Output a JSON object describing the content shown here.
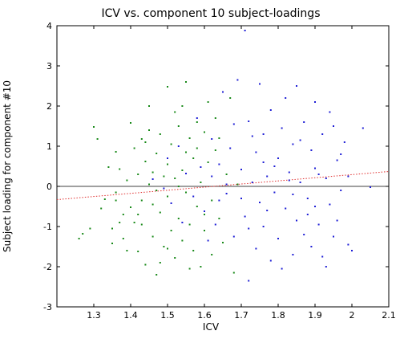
{
  "chart_data": {
    "type": "scatter",
    "title": "ICV vs. component 10 subject-loadings",
    "xlabel": "ICV",
    "ylabel": "Subject loading for component #10",
    "xlim": [
      1.2,
      2.1
    ],
    "ylim": [
      -3,
      4
    ],
    "x_ticks": [
      1.3,
      1.4,
      1.5,
      1.6,
      1.7,
      1.8,
      1.9,
      2,
      2.1
    ],
    "x_tick_labels": [
      "1.3",
      "1.4",
      "1.5",
      "1.6",
      "1.7",
      "1.8",
      "1.9",
      "2",
      "2.1"
    ],
    "y_ticks": [
      -3,
      -2,
      -1,
      0,
      1,
      2,
      3,
      4
    ],
    "y_tick_labels": [
      "-3",
      "-2",
      "-1",
      "0",
      "1",
      "2",
      "3",
      "4"
    ],
    "grid": false,
    "legend": "none",
    "series": [
      {
        "color": "#1a8a1a",
        "marker": "dot",
        "points": [
          [
            1.26,
            -1.3
          ],
          [
            1.27,
            -1.18
          ],
          [
            1.29,
            -1.05
          ],
          [
            1.3,
            1.48
          ],
          [
            1.31,
            1.18
          ],
          [
            1.32,
            -0.55
          ],
          [
            1.33,
            -0.32
          ],
          [
            1.34,
            0.48
          ],
          [
            1.35,
            -1.05
          ],
          [
            1.35,
            -1.42
          ],
          [
            1.36,
            0.86
          ],
          [
            1.36,
            -0.15
          ],
          [
            1.37,
            0.43
          ],
          [
            1.38,
            -1.3
          ],
          [
            1.38,
            -0.7
          ],
          [
            1.39,
            0.15
          ],
          [
            1.4,
            1.58
          ],
          [
            1.4,
            -0.52
          ],
          [
            1.41,
            0.95
          ],
          [
            1.41,
            -0.9
          ],
          [
            1.42,
            0.3
          ],
          [
            1.42,
            -1.62
          ],
          [
            1.43,
            1.18
          ],
          [
            1.43,
            -0.35
          ],
          [
            1.43,
            -0.95
          ],
          [
            1.44,
            0.62
          ],
          [
            1.44,
            -1.95
          ],
          [
            1.45,
            1.4
          ],
          [
            1.45,
            0.05
          ],
          [
            1.46,
            -0.45
          ],
          [
            1.46,
            -1.25
          ],
          [
            1.47,
            0.82
          ],
          [
            1.47,
            -2.2
          ],
          [
            1.48,
            1.3
          ],
          [
            1.48,
            -0.65
          ],
          [
            1.49,
            0.25
          ],
          [
            1.49,
            -1.5
          ],
          [
            1.5,
            2.48
          ],
          [
            1.5,
            0.55
          ],
          [
            1.5,
            -0.25
          ],
          [
            1.51,
            1.05
          ],
          [
            1.51,
            -1.1
          ],
          [
            1.52,
            -1.78
          ],
          [
            1.52,
            0.2
          ],
          [
            1.53,
            1.5
          ],
          [
            1.53,
            -0.8
          ],
          [
            1.54,
            2.0
          ],
          [
            1.54,
            0.4
          ],
          [
            1.54,
            -1.35
          ],
          [
            1.55,
            2.6
          ],
          [
            1.55,
            -0.15
          ],
          [
            1.56,
            1.2
          ],
          [
            1.56,
            -0.95
          ],
          [
            1.57,
            0.7
          ],
          [
            1.57,
            -1.6
          ],
          [
            1.58,
            1.6
          ],
          [
            1.58,
            -0.5
          ],
          [
            1.59,
            -2.0
          ],
          [
            1.59,
            0.1
          ],
          [
            1.6,
            1.35
          ],
          [
            1.6,
            -1.1
          ],
          [
            1.61,
            2.1
          ],
          [
            1.61,
            0.6
          ],
          [
            1.62,
            -0.35
          ],
          [
            1.62,
            -1.7
          ],
          [
            1.63,
            0.9
          ],
          [
            1.63,
            1.7
          ],
          [
            1.64,
            -0.8
          ],
          [
            1.65,
            -1.4
          ],
          [
            1.66,
            0.3
          ],
          [
            1.67,
            2.2
          ],
          [
            1.68,
            -2.15
          ],
          [
            1.69,
            0.05
          ],
          [
            1.45,
            2.0
          ],
          [
            1.37,
            -0.9
          ],
          [
            1.39,
            -1.6
          ],
          [
            1.44,
            1.1
          ],
          [
            1.47,
            -0.1
          ],
          [
            1.52,
            1.85
          ],
          [
            1.56,
            -2.05
          ],
          [
            1.58,
            0.95
          ],
          [
            1.6,
            -0.7
          ],
          [
            1.48,
            -1.9
          ],
          [
            1.42,
            -0.7
          ],
          [
            1.53,
            0.0
          ],
          [
            1.36,
            -0.35
          ],
          [
            1.64,
            1.2
          ],
          [
            1.46,
            0.35
          ],
          [
            1.5,
            -1.55
          ],
          [
            1.55,
            0.85
          ]
        ]
      },
      {
        "color": "#1f1fd6",
        "marker": "dot",
        "points": [
          [
            1.46,
            0.18
          ],
          [
            1.49,
            -0.05
          ],
          [
            1.51,
            -0.42
          ],
          [
            1.53,
            1.0
          ],
          [
            1.55,
            0.32
          ],
          [
            1.57,
            -0.25
          ],
          [
            1.59,
            0.48
          ],
          [
            1.6,
            -0.62
          ],
          [
            1.62,
            1.18
          ],
          [
            1.63,
            -0.95
          ],
          [
            1.64,
            0.55
          ],
          [
            1.65,
            2.35
          ],
          [
            1.66,
            -0.18
          ],
          [
            1.67,
            0.95
          ],
          [
            1.68,
            -1.25
          ],
          [
            1.69,
            2.65
          ],
          [
            1.7,
            0.42
          ],
          [
            1.71,
            3.88
          ],
          [
            1.71,
            -0.75
          ],
          [
            1.72,
            1.62
          ],
          [
            1.72,
            -2.35
          ],
          [
            1.73,
            0.1
          ],
          [
            1.74,
            -1.55
          ],
          [
            1.74,
            0.85
          ],
          [
            1.75,
            2.55
          ],
          [
            1.75,
            -0.4
          ],
          [
            1.76,
            1.3
          ],
          [
            1.76,
            -1.0
          ],
          [
            1.77,
            0.25
          ],
          [
            1.78,
            -1.85
          ],
          [
            1.78,
            1.9
          ],
          [
            1.79,
            -0.15
          ],
          [
            1.8,
            0.7
          ],
          [
            1.8,
            -1.3
          ],
          [
            1.81,
            1.45
          ],
          [
            1.82,
            -0.55
          ],
          [
            1.82,
            2.2
          ],
          [
            1.83,
            0.35
          ],
          [
            1.84,
            -1.7
          ],
          [
            1.84,
            1.05
          ],
          [
            1.85,
            -0.85
          ],
          [
            1.85,
            2.5
          ],
          [
            1.86,
            0.1
          ],
          [
            1.87,
            -1.2
          ],
          [
            1.87,
            1.6
          ],
          [
            1.88,
            -0.3
          ],
          [
            1.89,
            0.9
          ],
          [
            1.89,
            -1.5
          ],
          [
            1.9,
            2.1
          ],
          [
            1.9,
            0.45
          ],
          [
            1.91,
            -0.95
          ],
          [
            1.92,
            1.3
          ],
          [
            1.92,
            -1.75
          ],
          [
            1.93,
            0.2
          ],
          [
            1.94,
            -0.45
          ],
          [
            1.94,
            1.85
          ],
          [
            1.95,
            -1.25
          ],
          [
            1.96,
            0.65
          ],
          [
            1.97,
            -0.1
          ],
          [
            1.98,
            1.1
          ],
          [
            1.99,
            -1.45
          ],
          [
            2.0,
            -1.6
          ],
          [
            2.03,
            1.45
          ],
          [
            2.05,
            -0.02
          ],
          [
            1.58,
            1.7
          ],
          [
            1.61,
            -1.35
          ],
          [
            1.66,
            0.05
          ],
          [
            1.7,
            -0.3
          ],
          [
            1.73,
            1.25
          ],
          [
            1.77,
            -0.6
          ],
          [
            1.79,
            0.5
          ],
          [
            1.81,
            -2.05
          ],
          [
            1.83,
            0.15
          ],
          [
            1.86,
            1.15
          ],
          [
            1.88,
            -0.7
          ],
          [
            1.91,
            0.3
          ],
          [
            1.93,
            -2.0
          ],
          [
            1.95,
            1.5
          ],
          [
            1.97,
            0.8
          ],
          [
            1.99,
            0.25
          ],
          [
            1.64,
            -0.35
          ],
          [
            1.68,
            1.55
          ],
          [
            1.72,
            -1.05
          ],
          [
            1.76,
            0.6
          ],
          [
            1.84,
            -0.2
          ],
          [
            1.9,
            -0.5
          ],
          [
            1.96,
            -0.85
          ],
          [
            1.54,
            -0.9
          ],
          [
            1.5,
            0.7
          ],
          [
            1.62,
            0.25
          ]
        ]
      }
    ],
    "reference_lines": [
      {
        "kind": "horizontal",
        "y": 0,
        "color": "#000000",
        "style": "solid"
      },
      {
        "kind": "fit",
        "from": [
          1.2,
          -0.33
        ],
        "to": [
          2.1,
          0.37
        ],
        "color": "#e03030",
        "style": "dotted"
      }
    ]
  }
}
